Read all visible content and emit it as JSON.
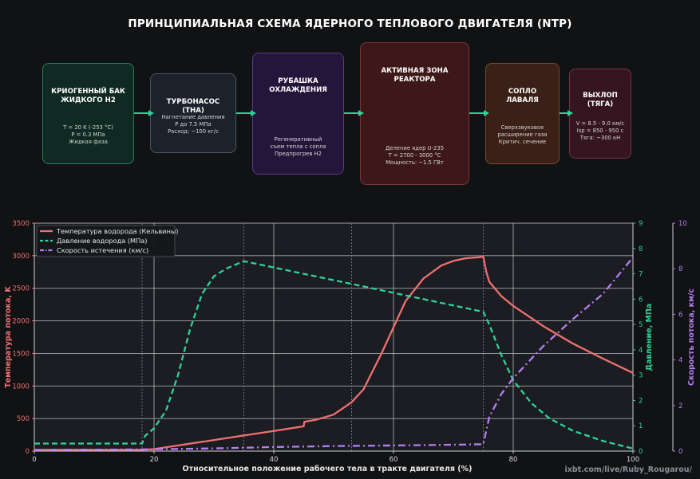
{
  "title": "ПРИНЦИПИАЛЬНАЯ СХЕМА ЯДЕРНОГО ТЕПЛОВОГО ДВИГАТЕЛЯ (NTP)",
  "watermark": "ixbt.com/live/Ruby_Rougarou/",
  "blocks": [
    {
      "title": "КРИОГЕННЫЙ БАК\nЖИДКОГО H2",
      "desc": "T = 20 K (-253 °C)\nP = 0.3 МПа\nЖидкая фаза",
      "fill": "#0e2a22",
      "border": "#2a7a5e"
    },
    {
      "title": "ТУРБОНАСОС\n(ТНА)",
      "desc": "Нагнетание давления\nP до 7.5 МПа\nРасход: ~100 кг/с",
      "fill": "#1c222b",
      "border": "#4a5563"
    },
    {
      "title": "РУБАШКА\nОХЛАЖДЕНИЯ",
      "desc": "Регенеративный\nсъем тепла с сопла\nПредпрогрев H2",
      "fill": "#24163a",
      "border": "#5c3d86"
    },
    {
      "title": "АКТИВНАЯ ЗОНА\nРЕАКТОРА",
      "desc": "Деление ядер U-235\nT = 2700 - 3000 °C\nМощность: ~1.5 ГВт",
      "fill": "#3e1819",
      "border": "#7a3434"
    },
    {
      "title": "СОПЛО\nЛАВАЛЯ",
      "desc": "Сверхзвуковое\nрасширение газа\nКритич. сечение",
      "fill": "#3a2016",
      "border": "#7a4a2c"
    },
    {
      "title": "ВЫХЛОП\n(ТЯГА)",
      "desc": "V = 8.5 - 9.0 км/с\nIsp = 850 - 950 с\nТяга: ~300 кН",
      "fill": "#35151f",
      "border": "#743246"
    }
  ],
  "colors": {
    "temperature": "#f07070",
    "pressure": "#2fd29a",
    "velocity": "#b57ff0",
    "arrow": "#2fd29a",
    "background": "#1b1d22"
  },
  "chart_data": {
    "type": "line",
    "xlabel": "Относительное положение рабочего тела в тракте двигателя (%)",
    "x_ticks": [
      "0",
      "20",
      "40",
      "60",
      "80",
      "100"
    ],
    "xlim": [
      0,
      100
    ],
    "axes": {
      "left": {
        "label": "Температура потока, K",
        "ylim": [
          0,
          3500
        ],
        "ticks": [
          "0",
          "500",
          "1000",
          "1500",
          "2000",
          "2500",
          "3000",
          "3500"
        ],
        "color": "#f07070"
      },
      "right1": {
        "label": "Давление, МПа",
        "ylim": [
          0,
          9
        ],
        "ticks": [
          "0",
          "1",
          "2",
          "3",
          "4",
          "5",
          "6",
          "7",
          "8",
          "9"
        ],
        "color": "#2fd29a"
      },
      "right2": {
        "label": "Скорость потока, км/с",
        "ylim": [
          0,
          10
        ],
        "ticks": [
          "0",
          "2",
          "4",
          "6",
          "8",
          "10"
        ],
        "color": "#b57ff0"
      }
    },
    "grid": true,
    "legend_position": "top-left",
    "section_boundaries_x": [
      18,
      35,
      53,
      75
    ],
    "series": [
      {
        "name": "Температура водорода (Кельвины)",
        "axis": "left",
        "style": "solid",
        "x": [
          0,
          18,
          20,
          25,
          30,
          35,
          40,
          45,
          45.1,
          47,
          50,
          53,
          55,
          58,
          60,
          62,
          65,
          68,
          70,
          72,
          74,
          75,
          75.5,
          76,
          78,
          80,
          85,
          90,
          95,
          100
        ],
        "y": [
          20,
          20,
          30,
          100,
          170,
          240,
          310,
          380,
          450,
          480,
          560,
          750,
          950,
          1500,
          1900,
          2300,
          2650,
          2850,
          2920,
          2960,
          2975,
          2985,
          2750,
          2600,
          2380,
          2230,
          1920,
          1650,
          1420,
          1200
        ]
      },
      {
        "name": "Давление водорода (МПа)",
        "axis": "right1",
        "style": "dashed",
        "x": [
          0,
          18,
          18.5,
          20,
          22,
          24,
          26,
          28,
          30,
          32,
          34,
          35,
          40,
          45,
          50,
          55,
          60,
          65,
          70,
          75,
          76,
          78,
          80,
          83,
          86,
          90,
          95,
          100
        ],
        "y": [
          0.3,
          0.3,
          0.6,
          0.9,
          1.6,
          3.0,
          4.8,
          6.2,
          6.9,
          7.2,
          7.4,
          7.5,
          7.25,
          7.0,
          6.75,
          6.5,
          6.25,
          6.0,
          5.75,
          5.5,
          5.0,
          3.8,
          2.8,
          1.9,
          1.3,
          0.8,
          0.4,
          0.1
        ]
      },
      {
        "name": "Скорость истечения (км/с)",
        "axis": "right2",
        "style": "dashdot",
        "x": [
          0,
          20,
          30,
          40,
          50,
          60,
          70,
          75,
          76,
          78,
          80,
          85,
          90,
          95,
          100
        ],
        "y": [
          0.05,
          0.08,
          0.12,
          0.18,
          0.22,
          0.25,
          0.28,
          0.3,
          1.5,
          2.5,
          3.2,
          4.6,
          5.8,
          6.9,
          8.5
        ]
      }
    ]
  }
}
